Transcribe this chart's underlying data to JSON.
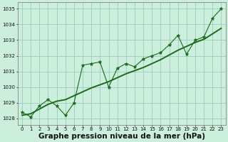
{
  "title": "Graphe pression niveau de la mer (hPa)",
  "x_values": [
    0,
    1,
    2,
    3,
    4,
    5,
    6,
    7,
    8,
    9,
    10,
    11,
    12,
    13,
    14,
    15,
    16,
    17,
    18,
    19,
    20,
    21,
    22,
    23
  ],
  "series1": [
    1028.4,
    1028.1,
    1028.8,
    1029.2,
    1028.8,
    1028.2,
    1029.0,
    1031.4,
    1031.5,
    1031.6,
    1030.0,
    1031.2,
    1031.5,
    1031.3,
    1031.8,
    1032.0,
    1032.2,
    1032.7,
    1033.3,
    1032.1,
    1033.0,
    1033.2,
    1034.4,
    1035.0
  ],
  "series2": [
    1028.2,
    1028.3,
    1028.6,
    1028.9,
    1029.1,
    1029.2,
    1029.45,
    1029.7,
    1029.95,
    1030.15,
    1030.35,
    1030.6,
    1030.85,
    1031.05,
    1031.25,
    1031.5,
    1031.75,
    1032.05,
    1032.35,
    1032.6,
    1032.85,
    1033.05,
    1033.4,
    1033.75
  ],
  "line_color_jagged": "#1a6b1a",
  "line_color_trend": "#1a6b1a",
  "marker_color": "#1a6b1a",
  "bg_color": "#cceedd",
  "grid_color": "#99ccbb",
  "ylim": [
    1027.6,
    1035.4
  ],
  "yticks": [
    1028,
    1029,
    1030,
    1031,
    1032,
    1033,
    1034,
    1035
  ],
  "xlim": [
    -0.5,
    23.5
  ],
  "title_fontsize": 7.5,
  "tick_fontsize": 5.0
}
